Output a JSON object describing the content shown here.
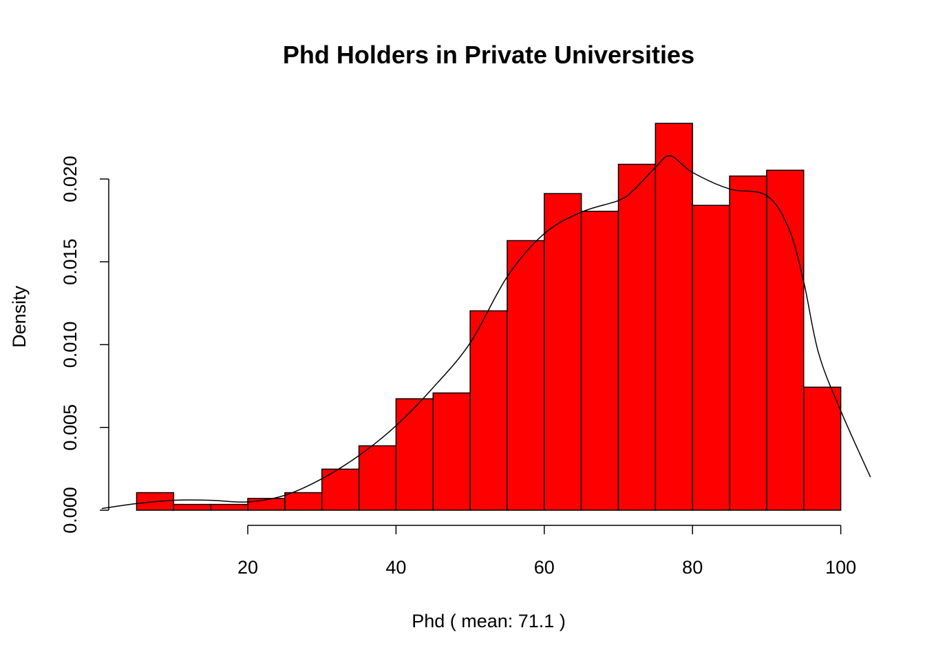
{
  "chart_data": {
    "type": "bar",
    "title": "Phd Holders in Private Universities",
    "xlabel": "Phd ( mean:  71.1 )",
    "ylabel": "Density",
    "bar_color": "#ff0000",
    "edge_color": "#000000",
    "line_color": "#000000",
    "xlim": [
      0,
      104
    ],
    "ylim": [
      0,
      0.022
    ],
    "x_ticks": [
      20,
      40,
      60,
      80,
      100
    ],
    "x_tick_labels": [
      "20",
      "40",
      "60",
      "80",
      "100"
    ],
    "y_ticks": [
      0,
      0.005,
      0.01,
      0.015,
      0.02
    ],
    "y_tick_labels": [
      "0.000",
      "0.005",
      "0.010",
      "0.015",
      "0.020"
    ],
    "grid": false,
    "bins": [
      {
        "start": 5,
        "end": 10,
        "density": 0.00106
      },
      {
        "start": 10,
        "end": 15,
        "density": 0.00035
      },
      {
        "start": 15,
        "end": 20,
        "density": 0.00035
      },
      {
        "start": 20,
        "end": 25,
        "density": 0.00071
      },
      {
        "start": 25,
        "end": 30,
        "density": 0.00106
      },
      {
        "start": 30,
        "end": 35,
        "density": 0.00248
      },
      {
        "start": 35,
        "end": 40,
        "density": 0.00389
      },
      {
        "start": 40,
        "end": 45,
        "density": 0.00673
      },
      {
        "start": 45,
        "end": 50,
        "density": 0.00708
      },
      {
        "start": 50,
        "end": 55,
        "density": 0.01204
      },
      {
        "start": 55,
        "end": 60,
        "density": 0.01628
      },
      {
        "start": 60,
        "end": 65,
        "density": 0.01912
      },
      {
        "start": 65,
        "end": 70,
        "density": 0.01805
      },
      {
        "start": 70,
        "end": 75,
        "density": 0.02089
      },
      {
        "start": 75,
        "end": 80,
        "density": 0.02336
      },
      {
        "start": 80,
        "end": 85,
        "density": 0.01841
      },
      {
        "start": 85,
        "end": 90,
        "density": 0.02018
      },
      {
        "start": 90,
        "end": 95,
        "density": 0.02053
      },
      {
        "start": 95,
        "end": 100,
        "density": 0.00743
      }
    ],
    "density_curve": {
      "x": [
        0.3,
        5,
        10,
        15,
        20,
        25,
        30,
        35,
        40,
        45,
        50,
        55,
        60,
        65,
        70,
        72,
        75,
        77,
        80,
        85,
        90,
        93,
        95,
        97,
        100,
        104
      ],
      "y": [
        0.0001,
        0.0004,
        0.0006,
        0.0006,
        0.0005,
        0.0009,
        0.0019,
        0.0033,
        0.0051,
        0.0074,
        0.0101,
        0.0141,
        0.0167,
        0.018,
        0.0187,
        0.0193,
        0.0207,
        0.0214,
        0.0204,
        0.0194,
        0.019,
        0.017,
        0.0138,
        0.0095,
        0.006,
        0.002
      ]
    }
  }
}
